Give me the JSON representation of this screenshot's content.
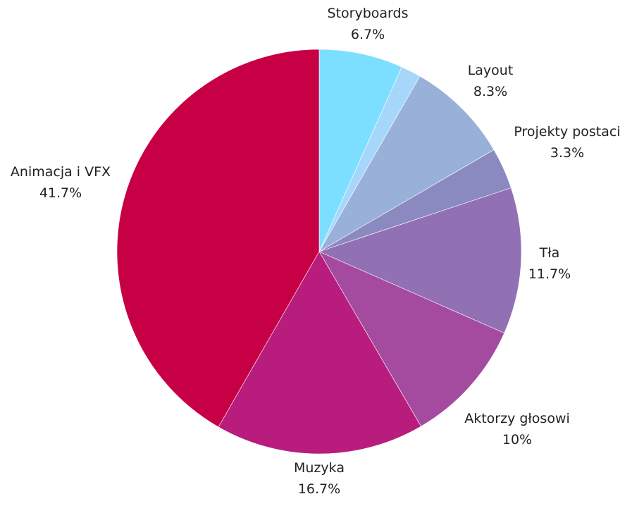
{
  "chart_data": {
    "type": "pie",
    "title": "",
    "slices": [
      {
        "label": "Storyboards",
        "value": 6.7,
        "value_label": "6.7%",
        "color": "#7ddfff"
      },
      {
        "label": "",
        "value": 1.6,
        "value_label": "",
        "color": "#a6d7fb"
      },
      {
        "label": "Layout",
        "value": 8.3,
        "value_label": "8.3%",
        "color": "#99b1d8"
      },
      {
        "label": "Projekty postaci",
        "value": 3.3,
        "value_label": "3.3%",
        "color": "#8b8ac0"
      },
      {
        "label": "Tła",
        "value": 11.7,
        "value_label": "11.7%",
        "color": "#9270b4"
      },
      {
        "label": "Aktorzy głosowi",
        "value": 10,
        "value_label": "10%",
        "color": "#a44b9f"
      },
      {
        "label": "Muzyka",
        "value": 16.7,
        "value_label": "16.7%",
        "color": "#b81c7d"
      },
      {
        "label": "Animacja i VFX",
        "value": 41.7,
        "value_label": "41.7%",
        "color": "#c70045"
      }
    ],
    "start_angle": "top (12 o'clock)",
    "direction": "clockwise",
    "legend": "none"
  }
}
